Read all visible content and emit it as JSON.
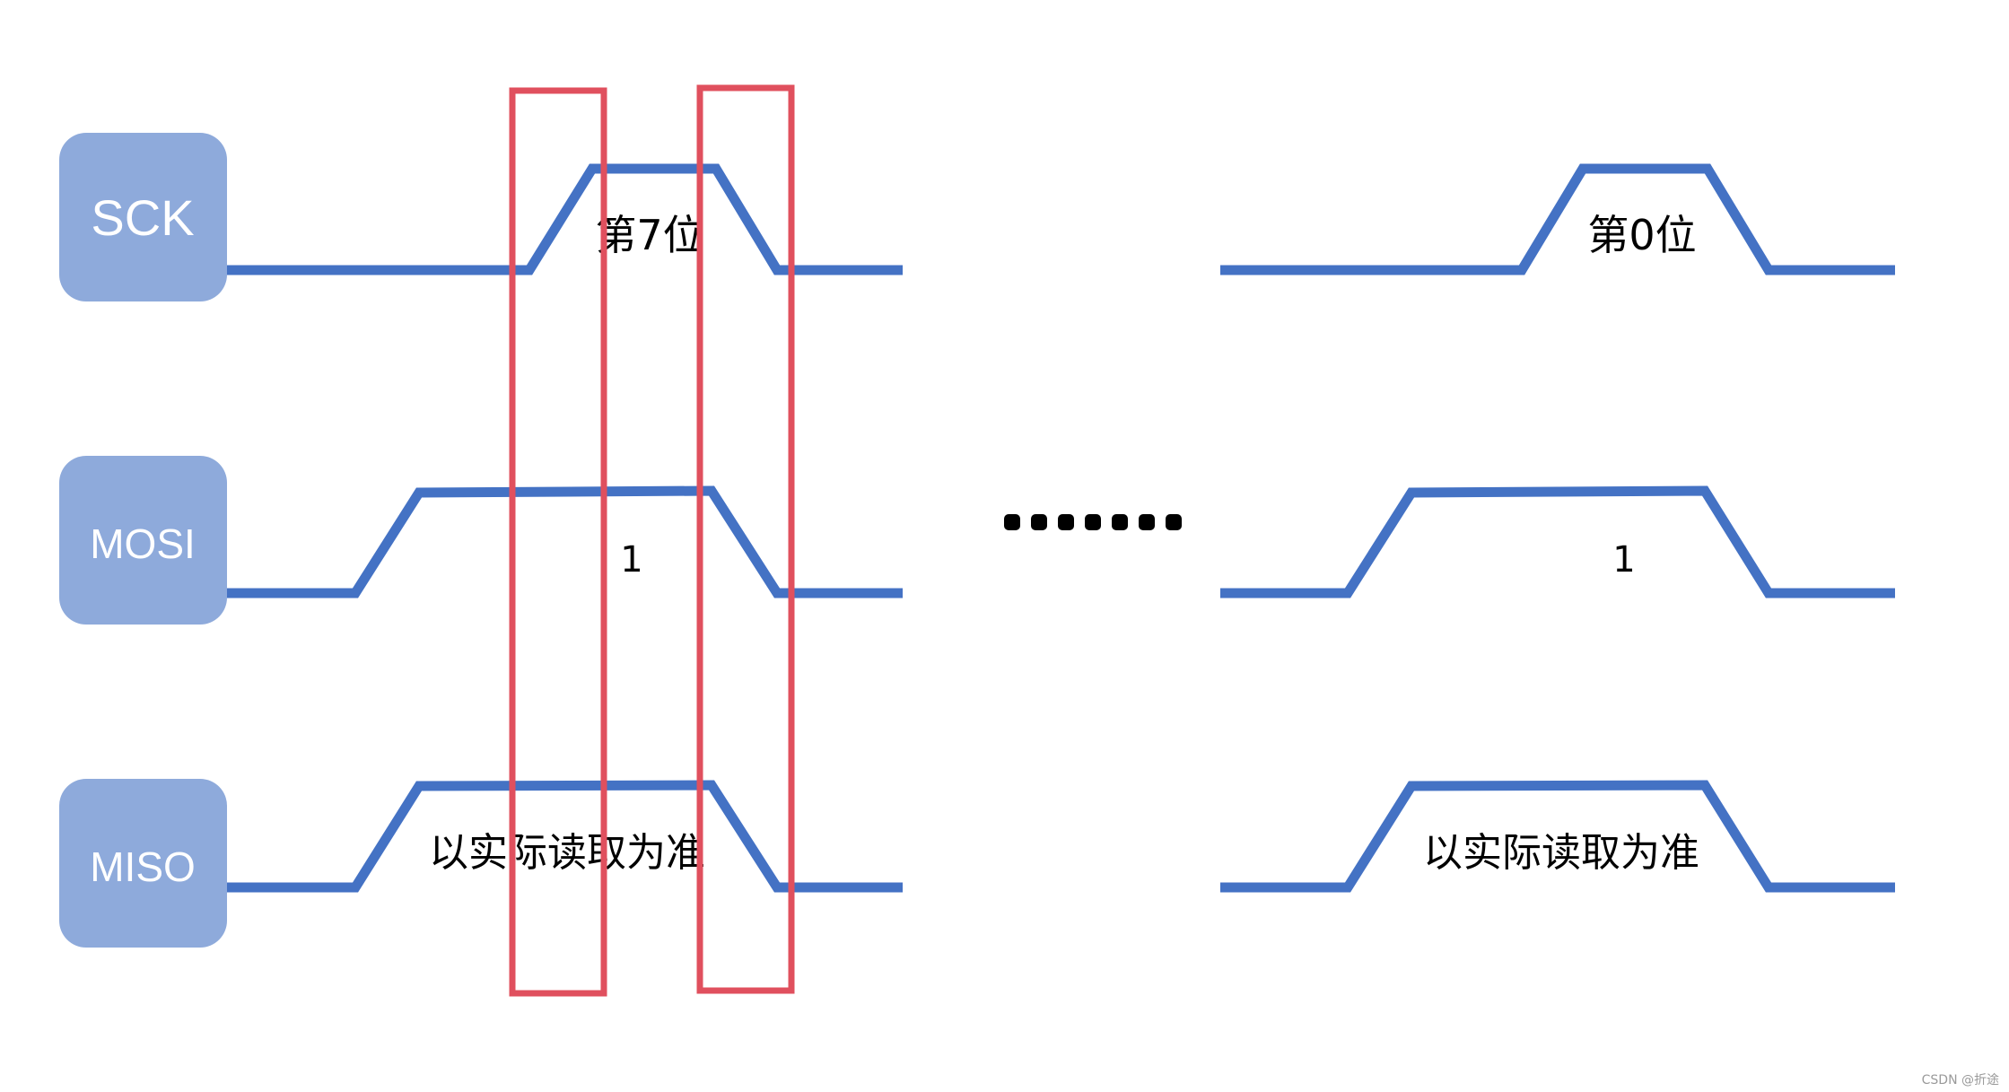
{
  "signals": [
    {
      "id": "sck",
      "label": "SCK"
    },
    {
      "id": "mosi",
      "label": "MOSI"
    },
    {
      "id": "miso",
      "label": "MISO"
    }
  ],
  "segments": {
    "left": {
      "sck_label": "第7位",
      "mosi_label": "1",
      "miso_label": "以实际读取为准"
    },
    "right": {
      "sck_label": "第0位",
      "mosi_label": "1",
      "miso_label": "以实际读取为准"
    }
  },
  "ellipsis": "·······",
  "watermark": "CSDN @折途",
  "colors": {
    "wave": "#4472c4",
    "label_box": "#8eaadb",
    "highlight": "#e0505e",
    "text": "#000000"
  }
}
